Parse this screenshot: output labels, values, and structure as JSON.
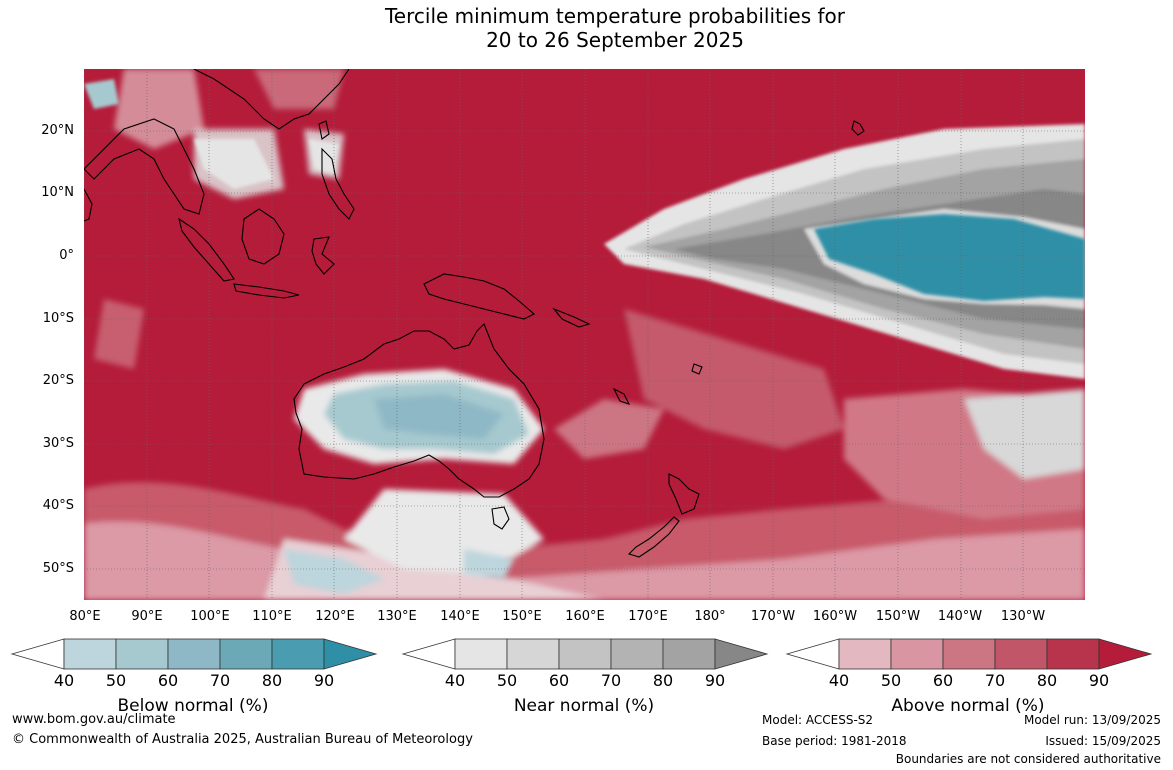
{
  "title": {
    "line1": "Tercile minimum temperature probabilities for",
    "line2": "20 to 26 September 2025"
  },
  "map": {
    "lat_labels": [
      "20°N",
      "10°N",
      "0°",
      "10°S",
      "20°S",
      "30°S",
      "40°S",
      "50°S"
    ],
    "lon_labels": [
      "80°E",
      "90°E",
      "100°E",
      "110°E",
      "120°E",
      "130°E",
      "140°E",
      "150°E",
      "160°E",
      "170°E",
      "180°",
      "170°W",
      "160°W",
      "150°W",
      "140°W",
      "130°W"
    ],
    "colors": {
      "above_dominant": "#b51f3a",
      "near_dominant": "#8a8a8a",
      "below_dominant": "#2b8ea8",
      "land_outline": "#000000",
      "gridline": "#666666"
    }
  },
  "colorbars": [
    {
      "name": "below",
      "label": "Below normal (%)",
      "ticks": [
        "40",
        "50",
        "60",
        "70",
        "80",
        "90"
      ],
      "colors": [
        "#ffffff",
        "#bdd5dc",
        "#a6c9cf",
        "#8fb8c6",
        "#6ba9b7",
        "#4a9db1",
        "#2e8fa6"
      ]
    },
    {
      "name": "near",
      "label": "Near normal (%)",
      "ticks": [
        "40",
        "50",
        "60",
        "70",
        "80",
        "90"
      ],
      "colors": [
        "#ffffff",
        "#e5e5e5",
        "#d6d6d6",
        "#c3c3c3",
        "#b3b3b3",
        "#a3a3a3",
        "#878787"
      ]
    },
    {
      "name": "above",
      "label": "Above normal (%)",
      "ticks": [
        "40",
        "50",
        "60",
        "70",
        "80",
        "90"
      ],
      "colors": [
        "#ffffff",
        "#e3b8c1",
        "#d995a2",
        "#cc7583",
        "#c15668",
        "#b8344c",
        "#b41c3a"
      ]
    }
  ],
  "footer": {
    "url": "www.bom.gov.au/climate",
    "copyright": "© Commonwealth of Australia 2025, Australian Bureau of Meteorology",
    "model": "Model: ACCESS-S2",
    "base_period": "Base period: 1981-2018",
    "model_run": "Model run: 13/09/2025",
    "issued": "Issued: 15/09/2025",
    "disclaimer": "Boundaries are not considered authoritative"
  }
}
